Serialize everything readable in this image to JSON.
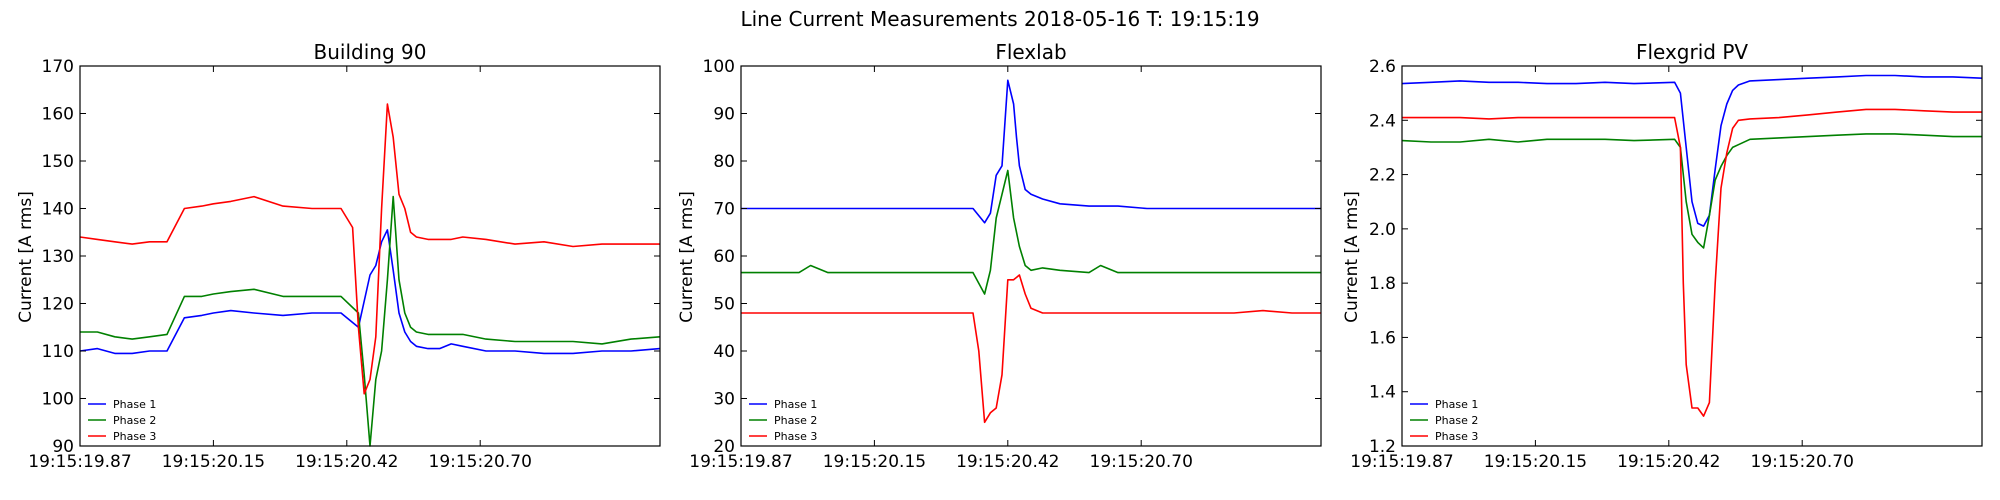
{
  "figure": {
    "suptitle": "Line Current Measurements 2018-05-16 T: 19:15:19"
  },
  "chart_data": [
    {
      "type": "line",
      "title": "Building 90",
      "xlabel": "",
      "ylabel": "Current [A rms]",
      "x_range": [
        0,
        100
      ],
      "x_ticks": [
        0,
        23,
        46,
        69
      ],
      "x_tick_labels": [
        "19:15:19.87",
        "19:15:20.15",
        "19:15:20.42",
        "19:15:20.70"
      ],
      "ylim": [
        90,
        170
      ],
      "y_ticks": [
        90,
        100,
        110,
        120,
        130,
        140,
        150,
        160,
        170
      ],
      "legend": "lower-left",
      "colors": [
        "#0000ff",
        "#008000",
        "#ff0000"
      ],
      "series": [
        {
          "name": "Phase 1",
          "x": [
            0,
            3,
            6,
            9,
            12,
            15,
            18,
            21,
            23,
            26,
            30,
            35,
            40,
            45,
            48,
            50,
            51,
            52,
            53,
            54,
            55,
            56,
            57,
            58,
            60,
            62,
            64,
            66,
            70,
            75,
            80,
            85,
            90,
            95,
            100
          ],
          "y": [
            110,
            110.5,
            109.5,
            109.5,
            110,
            110,
            117,
            117.5,
            118,
            118.5,
            118,
            117.5,
            118,
            118,
            115,
            126,
            128,
            133,
            135.5,
            127,
            118,
            114,
            112,
            111,
            110.5,
            110.5,
            111.5,
            111,
            110,
            110,
            109.5,
            109.5,
            110,
            110,
            110.5
          ]
        },
        {
          "name": "Phase 2",
          "x": [
            0,
            3,
            6,
            9,
            12,
            15,
            18,
            21,
            23,
            26,
            30,
            35,
            40,
            45,
            48,
            49,
            50,
            51,
            52,
            53,
            54,
            55,
            56,
            57,
            58,
            60,
            62,
            64,
            66,
            70,
            75,
            80,
            85,
            90,
            95,
            100
          ],
          "y": [
            114,
            114,
            113,
            112.5,
            113,
            113.5,
            121.5,
            121.5,
            122,
            122.5,
            123,
            121.5,
            121.5,
            121.5,
            118,
            105,
            90,
            104,
            110,
            125,
            142.5,
            125,
            118,
            115,
            114,
            113.5,
            113.5,
            113.5,
            113.5,
            112.5,
            112,
            112,
            112,
            111.5,
            112.5,
            113
          ]
        },
        {
          "name": "Phase 3",
          "x": [
            0,
            3,
            6,
            9,
            12,
            15,
            18,
            21,
            23,
            26,
            30,
            35,
            40,
            45,
            47,
            48,
            49,
            50,
            51,
            52,
            53,
            54,
            55,
            56,
            57,
            58,
            60,
            62,
            64,
            66,
            70,
            75,
            80,
            85,
            90,
            95,
            100
          ],
          "y": [
            134,
            133.5,
            133,
            132.5,
            133,
            133,
            140,
            140.5,
            141,
            141.5,
            142.5,
            140.5,
            140,
            140,
            136,
            115,
            101,
            104,
            113,
            140,
            162,
            155,
            143,
            140,
            135,
            134,
            133.5,
            133.5,
            133.5,
            134,
            133.5,
            132.5,
            133,
            132,
            132.5,
            132.5,
            132.5
          ]
        }
      ]
    },
    {
      "type": "line",
      "title": "Flexlab",
      "xlabel": "",
      "ylabel": "Current [A rms]",
      "x_range": [
        0,
        100
      ],
      "x_ticks": [
        0,
        23,
        46,
        69
      ],
      "x_tick_labels": [
        "19:15:19.87",
        "19:15:20.15",
        "19:15:20.42",
        "19:15:20.70"
      ],
      "ylim": [
        20,
        100
      ],
      "y_ticks": [
        20,
        30,
        40,
        50,
        60,
        70,
        80,
        90,
        100
      ],
      "legend": "lower-left",
      "colors": [
        "#0000ff",
        "#008000",
        "#ff0000"
      ],
      "series": [
        {
          "name": "Phase 1",
          "x": [
            0,
            5,
            10,
            15,
            20,
            25,
            30,
            35,
            40,
            42,
            43,
            44,
            45,
            46,
            47,
            47.5,
            48,
            49,
            50,
            52,
            55,
            60,
            65,
            70,
            75,
            80,
            85,
            90,
            95,
            100
          ],
          "y": [
            70,
            70,
            70,
            70,
            70,
            70,
            70,
            70,
            70,
            67,
            69,
            77,
            79,
            97,
            92,
            85,
            79,
            74,
            73,
            72,
            71,
            70.5,
            70.5,
            70,
            70,
            70,
            70,
            70,
            70,
            70
          ]
        },
        {
          "name": "Phase 2",
          "x": [
            0,
            5,
            10,
            12,
            15,
            20,
            25,
            30,
            35,
            40,
            42,
            43,
            44,
            45,
            46,
            47,
            48,
            49,
            50,
            52,
            55,
            60,
            62,
            65,
            70,
            75,
            80,
            85,
            90,
            95,
            100
          ],
          "y": [
            56.5,
            56.5,
            56.5,
            58,
            56.5,
            56.5,
            56.5,
            56.5,
            56.5,
            56.5,
            52,
            57,
            68,
            73,
            78,
            68,
            62,
            58,
            57,
            57.5,
            57,
            56.5,
            58,
            56.5,
            56.5,
            56.5,
            56.5,
            56.5,
            56.5,
            56.5,
            56.5
          ]
        },
        {
          "name": "Phase 3",
          "x": [
            0,
            5,
            10,
            15,
            20,
            25,
            30,
            35,
            40,
            41,
            42,
            43,
            44,
            45,
            46,
            47,
            48,
            49,
            50,
            52,
            55,
            60,
            65,
            70,
            75,
            80,
            85,
            90,
            95,
            100
          ],
          "y": [
            48,
            48,
            48,
            48,
            48,
            48,
            48,
            48,
            48,
            40,
            25,
            27,
            28,
            35,
            55,
            55,
            56,
            52,
            49,
            48,
            48,
            48,
            48,
            48,
            48,
            48,
            48,
            48.5,
            48,
            48
          ]
        }
      ]
    },
    {
      "type": "line",
      "title": "Flexgrid PV",
      "xlabel": "",
      "ylabel": "Current [A rms]",
      "x_range": [
        0,
        100
      ],
      "x_ticks": [
        0,
        23,
        46,
        69
      ],
      "x_tick_labels": [
        "19:15:19.87",
        "19:15:20.15",
        "19:15:20.42",
        "19:15:20.70"
      ],
      "ylim": [
        1.2,
        2.6
      ],
      "y_ticks": [
        1.2,
        1.4,
        1.6,
        1.8,
        2.0,
        2.2,
        2.4,
        2.6
      ],
      "legend": "lower-left",
      "colors": [
        "#0000ff",
        "#008000",
        "#ff0000"
      ],
      "series": [
        {
          "name": "Phase 1",
          "x": [
            0,
            5,
            10,
            15,
            20,
            25,
            30,
            35,
            40,
            47,
            48,
            49,
            50,
            51,
            52,
            53,
            54,
            55,
            56,
            57,
            58,
            60,
            65,
            70,
            75,
            80,
            85,
            90,
            95,
            100
          ],
          "y": [
            2.535,
            2.54,
            2.545,
            2.54,
            2.54,
            2.535,
            2.535,
            2.54,
            2.535,
            2.54,
            2.5,
            2.3,
            2.1,
            2.02,
            2.01,
            2.05,
            2.22,
            2.38,
            2.46,
            2.51,
            2.53,
            2.545,
            2.55,
            2.555,
            2.56,
            2.565,
            2.565,
            2.56,
            2.56,
            2.555
          ]
        },
        {
          "name": "Phase 2",
          "x": [
            0,
            5,
            10,
            15,
            20,
            25,
            30,
            35,
            40,
            47,
            48,
            49,
            50,
            51,
            52,
            53,
            54,
            55,
            56,
            57,
            58,
            60,
            65,
            70,
            75,
            80,
            85,
            90,
            95,
            100
          ],
          "y": [
            2.325,
            2.32,
            2.32,
            2.33,
            2.32,
            2.33,
            2.33,
            2.33,
            2.325,
            2.33,
            2.3,
            2.1,
            1.98,
            1.95,
            1.93,
            2.05,
            2.18,
            2.23,
            2.27,
            2.3,
            2.31,
            2.33,
            2.335,
            2.34,
            2.345,
            2.35,
            2.35,
            2.345,
            2.34,
            2.34
          ]
        },
        {
          "name": "Phase 3",
          "x": [
            0,
            5,
            10,
            15,
            20,
            25,
            30,
            35,
            40,
            47,
            48,
            48.5,
            49,
            50,
            51,
            52,
            53,
            54,
            55,
            56,
            57,
            58,
            60,
            65,
            70,
            75,
            80,
            85,
            90,
            95,
            100
          ],
          "y": [
            2.41,
            2.41,
            2.41,
            2.405,
            2.41,
            2.41,
            2.41,
            2.41,
            2.41,
            2.41,
            2.3,
            1.8,
            1.5,
            1.34,
            1.34,
            1.31,
            1.36,
            1.8,
            2.15,
            2.28,
            2.37,
            2.4,
            2.405,
            2.41,
            2.42,
            2.43,
            2.44,
            2.44,
            2.435,
            2.43,
            2.43
          ]
        }
      ]
    }
  ]
}
